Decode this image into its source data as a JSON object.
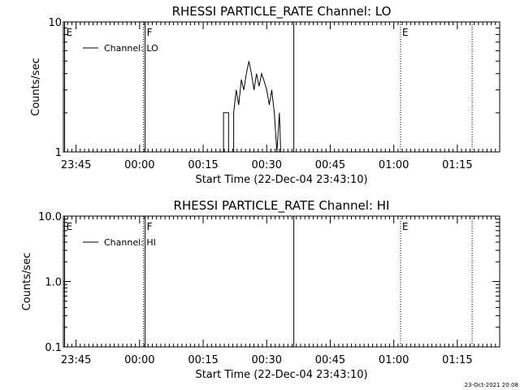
{
  "timestamp": "23-Oct-2021 20:08",
  "chart_data": [
    {
      "type": "line",
      "title": "RHESSI PARTICLE_RATE Channel: LO",
      "xlabel": "Start Time (22-Dec-04 23:43:10)",
      "ylabel": "Counts/sec",
      "yscale": "log",
      "ylim": [
        1,
        10
      ],
      "xlim_minutes": [
        -18,
        85
      ],
      "x_ticks": [
        {
          "label": "23:45",
          "min": -15
        },
        {
          "label": "00:00",
          "min": 0
        },
        {
          "label": "00:15",
          "min": 15
        },
        {
          "label": "00:30",
          "min": 30
        },
        {
          "label": "00:45",
          "min": 45
        },
        {
          "label": "01:00",
          "min": 60
        },
        {
          "label": "01:15",
          "min": 75
        }
      ],
      "y_ticks": [
        {
          "label": "10",
          "value": 10
        },
        {
          "label": "1",
          "value": 1
        }
      ],
      "legend": {
        "label": "Channel: LO",
        "placement": "top-left"
      },
      "markers": [
        {
          "label": "E",
          "min": -17.7,
          "style": "solid"
        },
        {
          "label": "",
          "min": 0.9,
          "style": "dotted"
        },
        {
          "label": "F",
          "min": 1.3,
          "style": "solid"
        },
        {
          "label": "",
          "min": 36.4,
          "style": "solid"
        },
        {
          "label": "E",
          "min": 61.6,
          "style": "dotted"
        },
        {
          "label": "",
          "min": 78.5,
          "style": "dotted"
        }
      ],
      "series": [
        {
          "name": "Channel: LO",
          "points": [
            {
              "x": 19.8,
              "y": 1.0
            },
            {
              "x": 19.8,
              "y": 2.0
            },
            {
              "x": 21.0,
              "y": 2.0
            },
            {
              "x": 21.0,
              "y": 1.0
            },
            {
              "x": 22.2,
              "y": 1.0
            },
            {
              "x": 22.2,
              "y": 2.0
            },
            {
              "x": 22.8,
              "y": 3.0
            },
            {
              "x": 23.4,
              "y": 2.3
            },
            {
              "x": 24.0,
              "y": 3.6
            },
            {
              "x": 24.6,
              "y": 3.0
            },
            {
              "x": 25.2,
              "y": 4.0
            },
            {
              "x": 25.8,
              "y": 5.0
            },
            {
              "x": 26.4,
              "y": 4.0
            },
            {
              "x": 27.0,
              "y": 3.0
            },
            {
              "x": 27.6,
              "y": 4.0
            },
            {
              "x": 28.2,
              "y": 3.2
            },
            {
              "x": 28.8,
              "y": 4.0
            },
            {
              "x": 29.4,
              "y": 3.5
            },
            {
              "x": 30.0,
              "y": 3.0
            },
            {
              "x": 30.6,
              "y": 2.3
            },
            {
              "x": 31.2,
              "y": 3.0
            },
            {
              "x": 31.8,
              "y": 2.0
            },
            {
              "x": 32.4,
              "y": 1.0
            },
            {
              "x": 33.0,
              "y": 2.0
            },
            {
              "x": 33.3,
              "y": 1.0
            }
          ]
        }
      ]
    },
    {
      "type": "line",
      "title": "RHESSI PARTICLE_RATE Channel: HI",
      "xlabel": "Start Time (22-Dec-04 23:43:10)",
      "ylabel": "Counts/sec",
      "yscale": "log",
      "ylim": [
        0.1,
        10
      ],
      "xlim_minutes": [
        -18,
        85
      ],
      "x_ticks": [
        {
          "label": "23:45",
          "min": -15
        },
        {
          "label": "00:00",
          "min": 0
        },
        {
          "label": "00:15",
          "min": 15
        },
        {
          "label": "00:30",
          "min": 30
        },
        {
          "label": "00:45",
          "min": 45
        },
        {
          "label": "01:00",
          "min": 60
        },
        {
          "label": "01:15",
          "min": 75
        }
      ],
      "y_ticks": [
        {
          "label": "10.0",
          "value": 10
        },
        {
          "label": "1.0",
          "value": 1
        },
        {
          "label": "0.1",
          "value": 0.1
        }
      ],
      "legend": {
        "label": "Channel: HI",
        "placement": "top-left"
      },
      "markers": [
        {
          "label": "E",
          "min": -17.7,
          "style": "solid"
        },
        {
          "label": "",
          "min": 0.9,
          "style": "dotted"
        },
        {
          "label": "F",
          "min": 1.3,
          "style": "solid"
        },
        {
          "label": "",
          "min": 36.4,
          "style": "solid"
        },
        {
          "label": "E",
          "min": 61.6,
          "style": "dotted"
        },
        {
          "label": "",
          "min": 78.5,
          "style": "dotted"
        }
      ],
      "series": [
        {
          "name": "Channel: HI",
          "points": []
        }
      ]
    }
  ]
}
